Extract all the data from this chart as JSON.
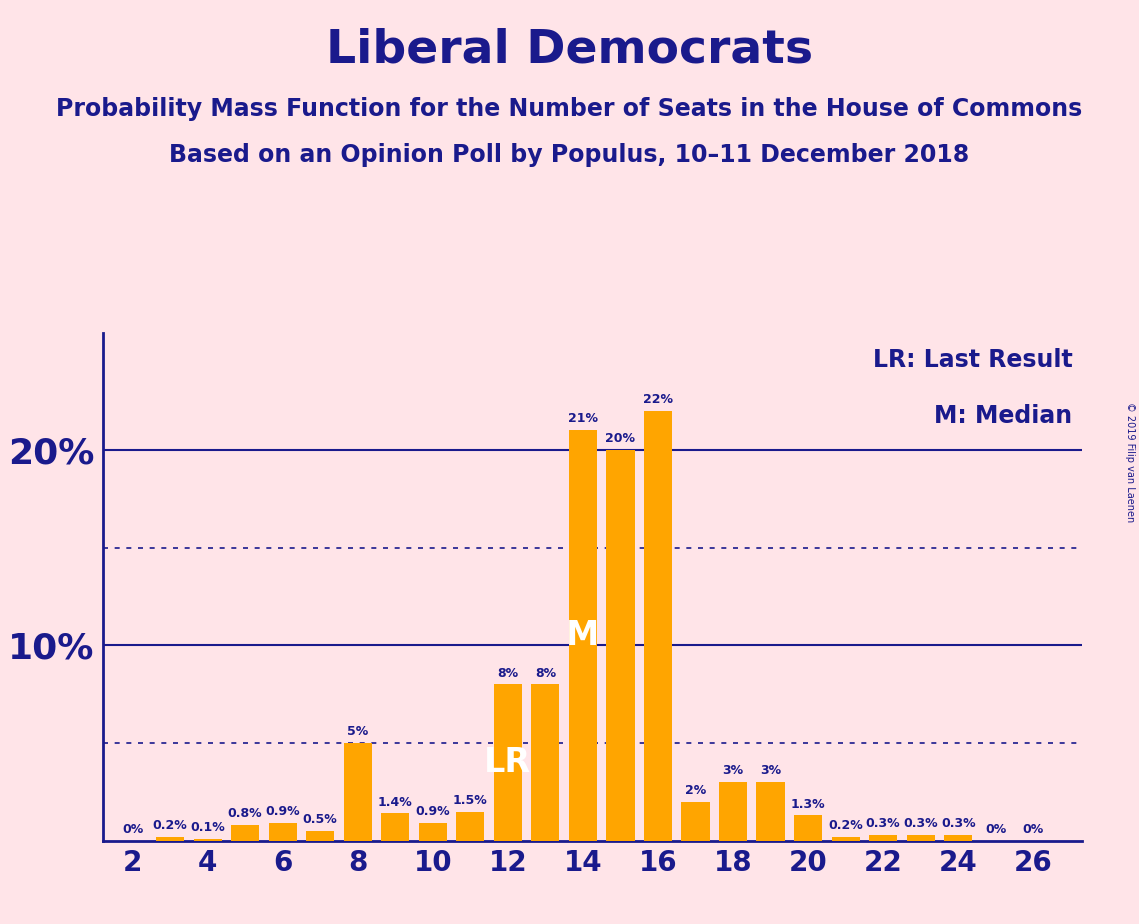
{
  "title": "Liberal Democrats",
  "subtitle1": "Probability Mass Function for the Number of Seats in the House of Commons",
  "subtitle2": "Based on an Opinion Poll by Populus, 10–11 December 2018",
  "copyright": "© 2019 Filip van Laenen",
  "seats": [
    2,
    3,
    4,
    5,
    6,
    7,
    8,
    9,
    10,
    11,
    12,
    13,
    14,
    15,
    16,
    17,
    18,
    19,
    20,
    21,
    22,
    23,
    24,
    25,
    26
  ],
  "values": [
    0.0,
    0.2,
    0.1,
    0.8,
    0.9,
    0.5,
    5.0,
    1.4,
    0.9,
    1.5,
    8.0,
    8.0,
    21.0,
    20.0,
    22.0,
    2.0,
    3.0,
    3.0,
    1.3,
    0.2,
    0.3,
    0.3,
    0.3,
    0.0,
    0.0
  ],
  "labels": [
    "0%",
    "0.2%",
    "0.1%",
    "0.8%",
    "0.9%",
    "0.5%",
    "5%",
    "1.4%",
    "0.9%",
    "1.5%",
    "8%",
    "8%",
    "21%",
    "20%",
    "22%",
    "2%",
    "3%",
    "3%",
    "1.3%",
    "0.2%",
    "0.3%",
    "0.3%",
    "0.3%",
    "0%",
    "0%"
  ],
  "bar_color": "#FFA500",
  "background_color": "#FFE4E8",
  "text_color": "#1a1a8c",
  "title_fontsize": 34,
  "subtitle_fontsize": 17,
  "ylim": [
    0,
    26
  ],
  "LR_seat": 12,
  "Median_seat": 14,
  "legend_LR": "LR: Last Result",
  "legend_M": "M: Median",
  "dotted_lines": [
    5.0,
    15.0
  ],
  "solid_lines": [
    10.0,
    20.0
  ],
  "xticks": [
    2,
    4,
    6,
    8,
    10,
    12,
    14,
    16,
    18,
    20,
    22,
    24,
    26
  ],
  "bar_width": 0.75,
  "label_fontsize": 9,
  "tick_fontsize_x": 20,
  "tick_fontsize_y": 26,
  "legend_fontsize": 17,
  "marker_fontsize": 24
}
